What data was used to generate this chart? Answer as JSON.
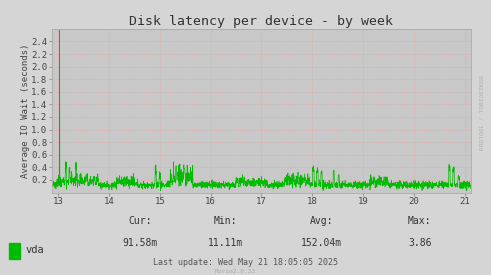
{
  "title": "Disk latency per device - by week",
  "ylabel": "Average IO Wait (seconds)",
  "background_color": "#d5d5d5",
  "plot_bg_color": "#c8c8c8",
  "grid_color": "#e8a0a0",
  "line_color": "#00bb00",
  "xmin": 12.87,
  "xmax": 21.13,
  "ymin": 0.0,
  "ymax": 2.6,
  "xticks": [
    13,
    14,
    15,
    16,
    17,
    18,
    19,
    20,
    21
  ],
  "yticks": [
    0.2,
    0.4,
    0.6,
    0.8,
    1.0,
    1.2,
    1.4,
    1.6,
    1.8,
    2.0,
    2.2,
    2.4
  ],
  "legend_label": "vda",
  "legend_color": "#00bb00",
  "cur_label": "Cur:",
  "cur_val": "91.58m",
  "min_label": "Min:",
  "min_val": "11.11m",
  "avg_label": "Avg:",
  "avg_val": "152.04m",
  "max_label": "Max:",
  "max_val": "3.86",
  "last_update": "Last update: Wed May 21 18:05:05 2025",
  "murin_label": "Murin2.0.33",
  "watermark": "RRDTOOL / TOBIOETKER",
  "title_fontsize": 9.5,
  "axis_fontsize": 6.5,
  "tick_fontsize": 6.5,
  "anno_fontsize": 7.0,
  "legend_fontsize": 7.5
}
